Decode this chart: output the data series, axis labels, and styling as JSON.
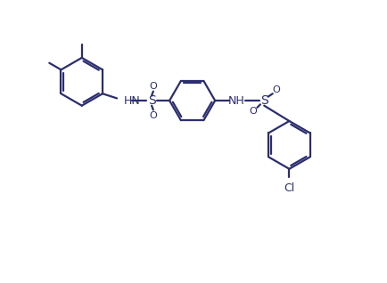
{
  "background_color": "#ffffff",
  "line_color": "#2b2d6e",
  "line_width": 1.6,
  "text_color": "#2b2d6e",
  "font_size": 9,
  "figsize": [
    4.35,
    3.18
  ],
  "dpi": 100,
  "xlim": [
    0,
    10
  ],
  "ylim": [
    0,
    7.3
  ]
}
